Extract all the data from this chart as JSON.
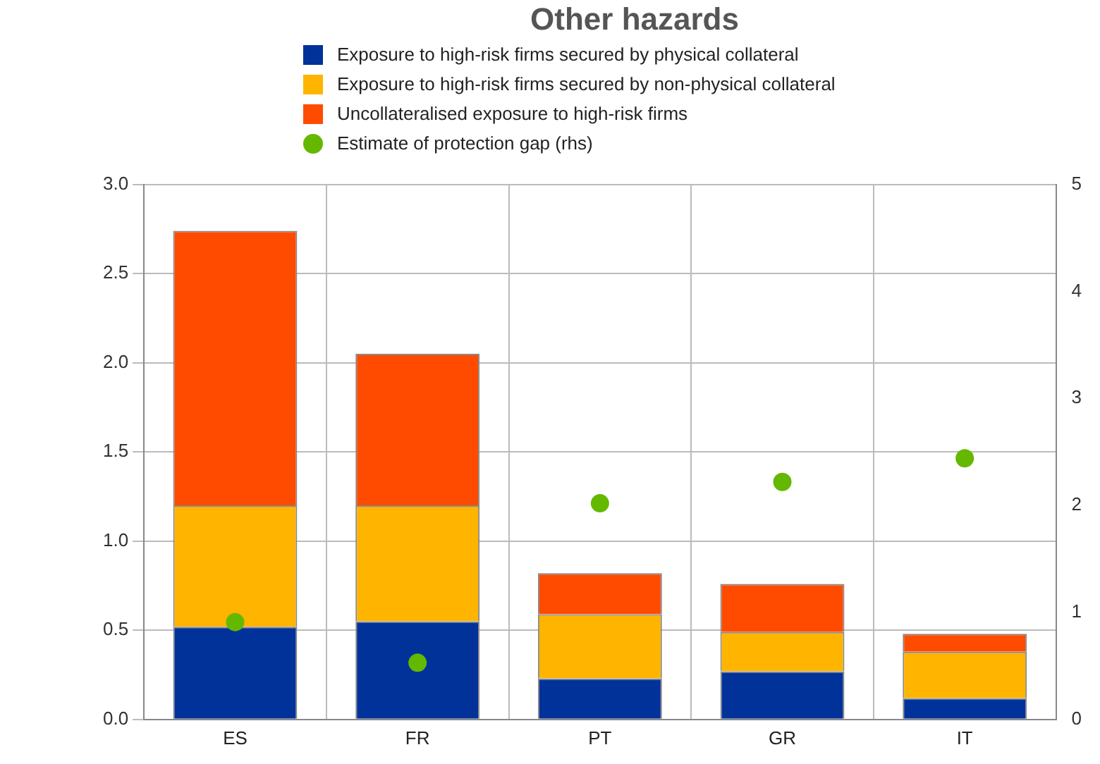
{
  "chart_data": {
    "type": "bar",
    "title": "Other hazards",
    "categories": [
      "ES",
      "FR",
      "PT",
      "GR",
      "IT"
    ],
    "stacked": true,
    "series": [
      {
        "name": "Exposure to high-risk firms secured by physical collateral",
        "color": "#003299",
        "values": [
          0.52,
          0.55,
          0.23,
          0.27,
          0.12
        ]
      },
      {
        "name": "Exposure to high-risk firms secured by non-physical collateral",
        "color": "#ffb400",
        "values": [
          0.68,
          0.65,
          0.36,
          0.22,
          0.26
        ]
      },
      {
        "name": "Uncollateralised exposure to high-risk firms",
        "color": "#ff4b00",
        "values": [
          1.54,
          0.85,
          0.23,
          0.27,
          0.1
        ]
      },
      {
        "name": "Estimate of protection gap (rhs)",
        "color": "#65b800",
        "type": "scatter",
        "axis": "y2",
        "x": [
          "ES",
          "FR",
          "PT",
          "GR",
          "IT"
        ],
        "values": [
          0.91,
          0.53,
          2.02,
          2.22,
          2.44
        ]
      }
    ],
    "ylim": [
      0,
      3
    ],
    "yticks": [
      {
        "value": 0,
        "label": "0.0"
      },
      {
        "value": 0.5,
        "label": "0.5"
      },
      {
        "value": 1,
        "label": "1.0"
      },
      {
        "value": 1.5,
        "label": "1.5"
      },
      {
        "value": 2,
        "label": "2.0"
      },
      {
        "value": 2.5,
        "label": "2.5"
      },
      {
        "value": 3,
        "label": "3.0"
      }
    ],
    "y2lim": [
      0,
      5
    ],
    "y2ticks": [
      0,
      1,
      2,
      3,
      4,
      5
    ],
    "grid": true,
    "legend": "top",
    "marker": "circle"
  }
}
